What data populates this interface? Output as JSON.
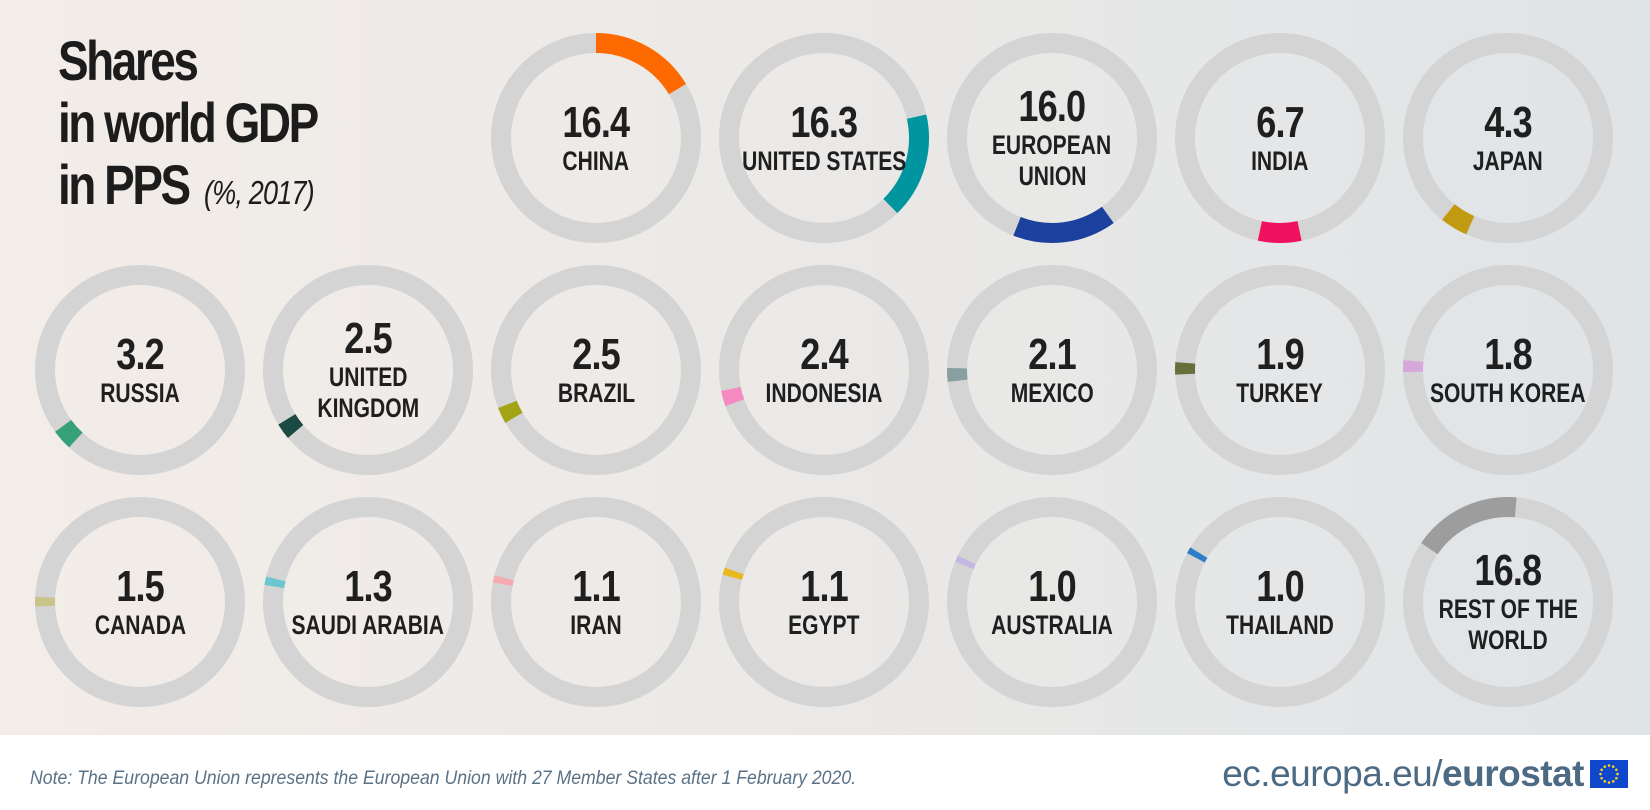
{
  "title": {
    "line1": "Shares",
    "line2": "in world GDP",
    "line3": "in PPS",
    "unit": "(%, 2017)"
  },
  "chart_data": {
    "type": "pie",
    "title": "Shares in world GDP in PPS (%, 2017)",
    "unit": "%",
    "items": [
      {
        "value": "16.4",
        "label": [
          "CHINA"
        ],
        "color": "#ff6a00"
      },
      {
        "value": "16.3",
        "label": [
          "UNITED STATES"
        ],
        "color": "#00959f"
      },
      {
        "value": "16.0",
        "label": [
          "EUROPEAN",
          "UNION"
        ],
        "color": "#1c409e"
      },
      {
        "value": "6.7",
        "label": [
          "INDIA"
        ],
        "color": "#f0115f"
      },
      {
        "value": "4.3",
        "label": [
          "JAPAN"
        ],
        "color": "#c29a12"
      },
      {
        "value": "3.2",
        "label": [
          "RUSSIA"
        ],
        "color": "#36a07a"
      },
      {
        "value": "2.5",
        "label": [
          "UNITED",
          "KINGDOM"
        ],
        "color": "#1b4a44"
      },
      {
        "value": "2.5",
        "label": [
          "BRAZIL"
        ],
        "color": "#a2a414"
      },
      {
        "value": "2.4",
        "label": [
          "INDONESIA"
        ],
        "color": "#f58ac1"
      },
      {
        "value": "2.1",
        "label": [
          "MEXICO"
        ],
        "color": "#879fa1"
      },
      {
        "value": "1.9",
        "label": [
          "TURKEY"
        ],
        "color": "#66703a"
      },
      {
        "value": "1.8",
        "label": [
          "SOUTH KOREA"
        ],
        "color": "#d7a7dc"
      },
      {
        "value": "1.5",
        "label": [
          "CANADA"
        ],
        "color": "#c9c48a"
      },
      {
        "value": "1.3",
        "label": [
          "SAUDI ARABIA"
        ],
        "color": "#6cc6cf"
      },
      {
        "value": "1.1",
        "label": [
          "IRAN"
        ],
        "color": "#f6a9ae"
      },
      {
        "value": "1.1",
        "label": [
          "EGYPT"
        ],
        "color": "#e9b71e"
      },
      {
        "value": "1.0",
        "label": [
          "AUSTRALIA"
        ],
        "color": "#c3b8e2"
      },
      {
        "value": "1.0",
        "label": [
          "THAILAND"
        ],
        "color": "#2e7dca"
      },
      {
        "value": "16.8",
        "label": [
          "REST OF THE",
          "WORLD"
        ],
        "color": "#9e9d9d"
      }
    ]
  },
  "footer": {
    "note": "Note: The European Union represents the European Union with 27 Member States after 1 February 2020.",
    "brand_prefix": "ec.europa.eu/",
    "brand_name": "eurostat"
  },
  "colors": {
    "track": "#d4d4d4",
    "text": "#1f1f1f",
    "brand": "#4c6a84",
    "flag_blue": "#0e47cb",
    "flag_star": "#ffd617"
  }
}
